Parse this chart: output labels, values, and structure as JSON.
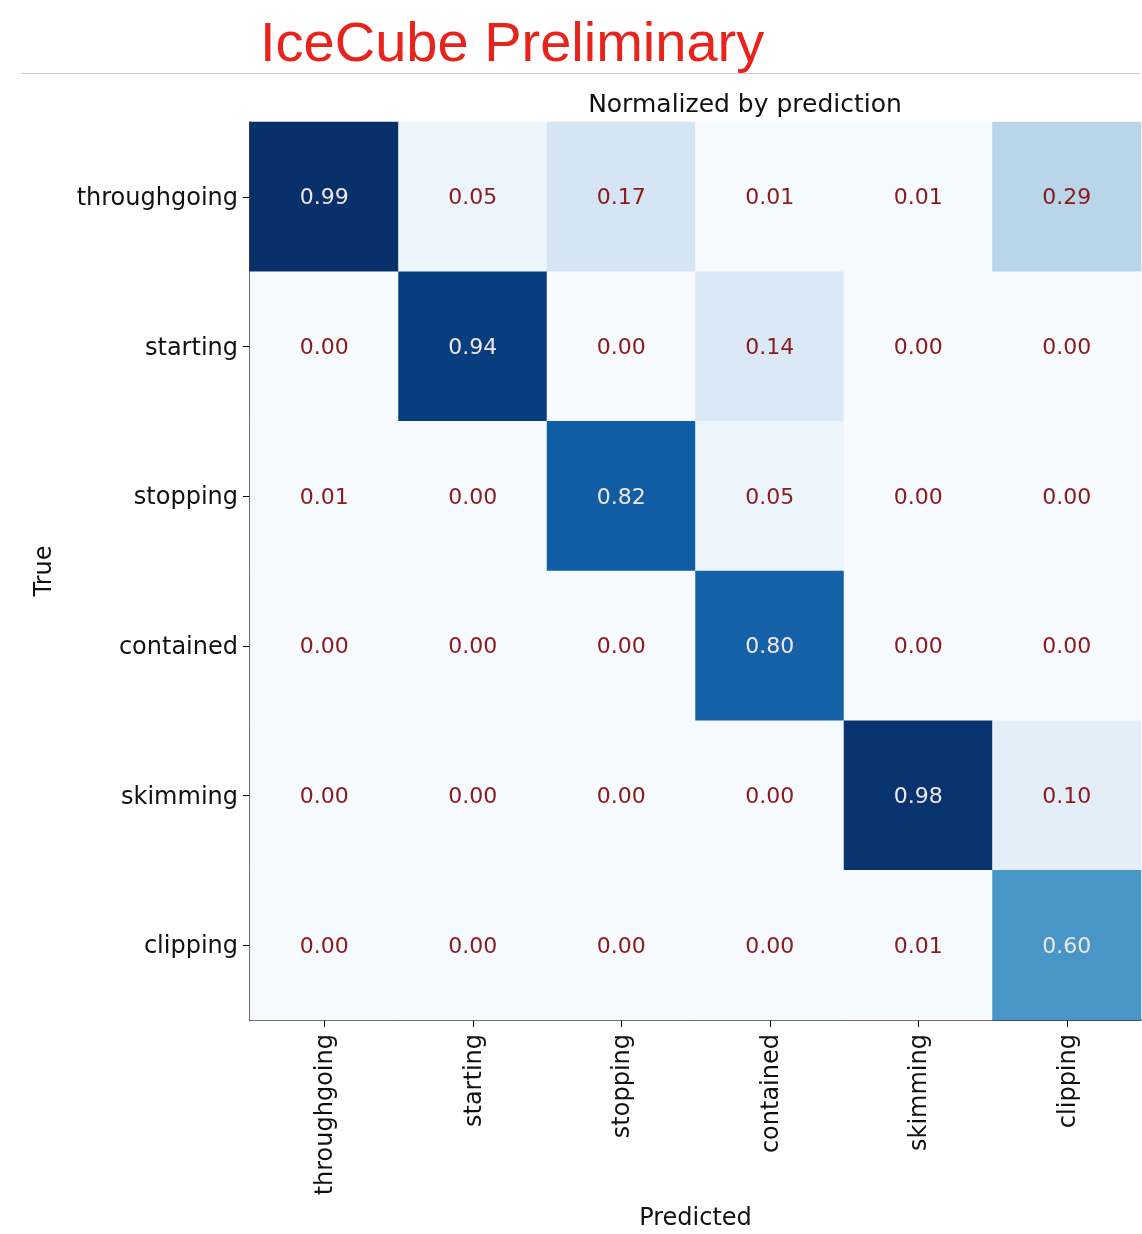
{
  "chart_data": {
    "type": "heatmap",
    "title": "IceCube Preliminary",
    "subtitle": "Normalized by prediction",
    "xlabel": "Predicted",
    "ylabel": "True",
    "categories": [
      "throughgoing",
      "starting",
      "stopping",
      "contained",
      "skimming",
      "clipping"
    ],
    "y_categories": [
      "throughgoing",
      "starting",
      "stopping",
      "contained",
      "skimming",
      "clipping"
    ],
    "cells": [
      [
        0.99,
        0.05,
        0.17,
        0.01,
        0.01,
        0.29
      ],
      [
        0.0,
        0.94,
        0.0,
        0.14,
        0.0,
        0.0
      ],
      [
        0.01,
        0.0,
        0.82,
        0.05,
        0.0,
        0.0
      ],
      [
        0.0,
        0.0,
        0.0,
        0.8,
        0.0,
        0.0
      ],
      [
        0.0,
        0.0,
        0.0,
        0.0,
        0.98,
        0.1
      ],
      [
        0.0,
        0.0,
        0.0,
        0.0,
        0.01,
        0.6
      ]
    ],
    "cell_labels": [
      [
        "0.99",
        "0.05",
        "0.17",
        "0.01",
        "0.01",
        "0.29"
      ],
      [
        "0.00",
        "0.94",
        "0.00",
        "0.14",
        "0.00",
        "0.00"
      ],
      [
        "0.01",
        "0.00",
        "0.82",
        "0.05",
        "0.00",
        "0.00"
      ],
      [
        "0.00",
        "0.00",
        "0.00",
        "0.80",
        "0.00",
        "0.00"
      ],
      [
        "0.00",
        "0.00",
        "0.00",
        "0.00",
        "0.98",
        "0.10"
      ],
      [
        "0.00",
        "0.00",
        "0.00",
        "0.00",
        "0.01",
        "0.60"
      ]
    ]
  }
}
